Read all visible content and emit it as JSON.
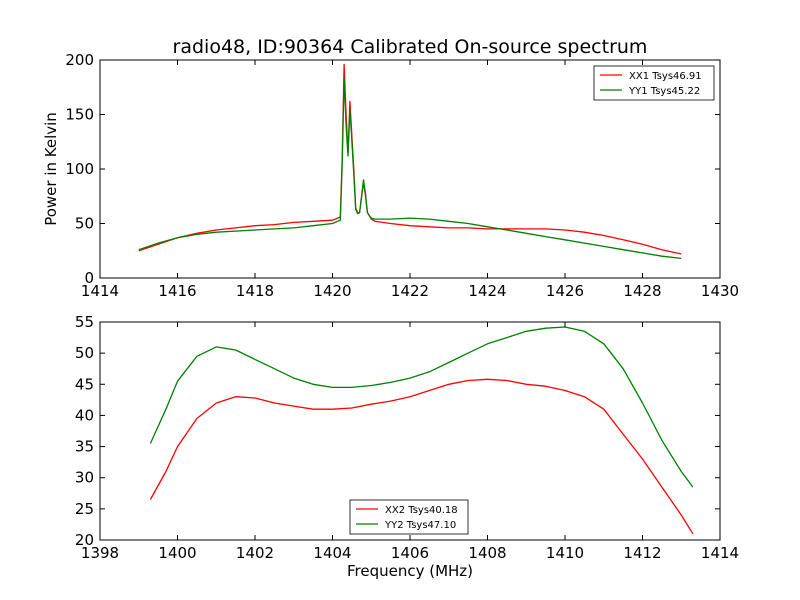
{
  "chart_data": [
    {
      "type": "line",
      "title": "radio48, ID:90364 Calibrated On-source spectrum",
      "xlabel": "",
      "ylabel": "Power in Kelvin",
      "xlim": [
        1414,
        1430
      ],
      "ylim": [
        0,
        200
      ],
      "xticks": [
        1414,
        1416,
        1418,
        1420,
        1422,
        1424,
        1426,
        1428,
        1430
      ],
      "yticks": [
        0,
        50,
        100,
        150,
        200
      ],
      "legend_position": "upper right",
      "series": [
        {
          "name": "XX1 Tsys46.91",
          "color": "#ff0000",
          "x": [
            1415.0,
            1415.5,
            1416.0,
            1416.5,
            1417.0,
            1417.5,
            1418.0,
            1418.5,
            1419.0,
            1419.5,
            1420.0,
            1420.2,
            1420.25,
            1420.3,
            1420.35,
            1420.4,
            1420.45,
            1420.5,
            1420.55,
            1420.6,
            1420.65,
            1420.7,
            1420.8,
            1420.85,
            1420.9,
            1421.0,
            1421.1,
            1421.5,
            1422.0,
            1422.5,
            1423.0,
            1423.5,
            1424.0,
            1424.5,
            1425.0,
            1425.5,
            1426.0,
            1426.5,
            1427.0,
            1427.5,
            1428.0,
            1428.5,
            1429.0
          ],
          "y": [
            25,
            31,
            37,
            41,
            44,
            46,
            48,
            49,
            51,
            52,
            53,
            56,
            110,
            196,
            150,
            115,
            162,
            130,
            100,
            64,
            60,
            60,
            88,
            76,
            60,
            54,
            52,
            50,
            48,
            47,
            46,
            46,
            45,
            45,
            45,
            45,
            44,
            42,
            39,
            35,
            31,
            26,
            22
          ]
        },
        {
          "name": "YY1 Tsys45.22",
          "color": "#008000",
          "x": [
            1415.0,
            1415.5,
            1416.0,
            1416.5,
            1417.0,
            1417.5,
            1418.0,
            1418.5,
            1419.0,
            1419.5,
            1420.0,
            1420.2,
            1420.25,
            1420.3,
            1420.35,
            1420.4,
            1420.45,
            1420.5,
            1420.55,
            1420.6,
            1420.65,
            1420.7,
            1420.8,
            1420.85,
            1420.9,
            1421.0,
            1421.1,
            1421.5,
            1422.0,
            1422.5,
            1423.0,
            1423.5,
            1424.0,
            1424.5,
            1425.0,
            1425.5,
            1426.0,
            1426.5,
            1427.0,
            1427.5,
            1428.0,
            1428.5,
            1429.0
          ],
          "y": [
            26,
            32,
            37,
            40,
            42,
            43,
            44,
            45,
            46,
            48,
            50,
            53,
            105,
            183,
            140,
            112,
            155,
            125,
            95,
            63,
            59,
            60,
            90,
            78,
            60,
            55,
            54,
            54,
            55,
            54,
            52,
            50,
            47,
            44,
            41,
            38,
            35,
            32,
            29,
            26,
            23,
            20,
            18
          ]
        }
      ]
    },
    {
      "type": "line",
      "title": "",
      "xlabel": "Frequency (MHz)",
      "ylabel": "",
      "xlim": [
        1398,
        1414
      ],
      "ylim": [
        20,
        55
      ],
      "xticks": [
        1398,
        1400,
        1402,
        1404,
        1406,
        1408,
        1410,
        1412,
        1414
      ],
      "yticks": [
        20,
        25,
        30,
        35,
        40,
        45,
        50,
        55
      ],
      "legend_position": "lower center",
      "series": [
        {
          "name": "XX2 Tsys40.18",
          "color": "#ff0000",
          "x": [
            1399.3,
            1399.7,
            1400.0,
            1400.5,
            1401.0,
            1401.5,
            1402.0,
            1402.5,
            1403.0,
            1403.5,
            1404.0,
            1404.5,
            1405.0,
            1405.5,
            1406.0,
            1406.5,
            1407.0,
            1407.5,
            1408.0,
            1408.5,
            1409.0,
            1409.5,
            1410.0,
            1410.5,
            1411.0,
            1411.5,
            1412.0,
            1412.5,
            1413.0,
            1413.3
          ],
          "y": [
            26.5,
            31,
            35,
            39.5,
            42,
            43,
            42.8,
            42,
            41.5,
            41,
            41,
            41.2,
            41.8,
            42.3,
            43,
            44,
            45,
            45.6,
            45.8,
            45.6,
            45,
            44.7,
            44,
            43,
            41,
            37,
            33,
            28.5,
            24,
            21
          ]
        },
        {
          "name": "YY2 Tsys47.10",
          "color": "#008000",
          "x": [
            1399.3,
            1399.7,
            1400.0,
            1400.5,
            1401.0,
            1401.5,
            1402.0,
            1402.5,
            1403.0,
            1403.5,
            1404.0,
            1404.5,
            1405.0,
            1405.5,
            1406.0,
            1406.5,
            1407.0,
            1407.5,
            1408.0,
            1408.5,
            1409.0,
            1409.5,
            1410.0,
            1410.5,
            1411.0,
            1411.5,
            1412.0,
            1412.5,
            1413.0,
            1413.3
          ],
          "y": [
            35.5,
            41,
            45.5,
            49.5,
            51,
            50.5,
            49,
            47.5,
            46,
            45,
            44.5,
            44.5,
            44.8,
            45.3,
            46,
            47,
            48.5,
            50,
            51.5,
            52.5,
            53.5,
            54,
            54.2,
            53.5,
            51.5,
            47.5,
            42,
            36,
            31,
            28.5
          ]
        }
      ]
    }
  ]
}
